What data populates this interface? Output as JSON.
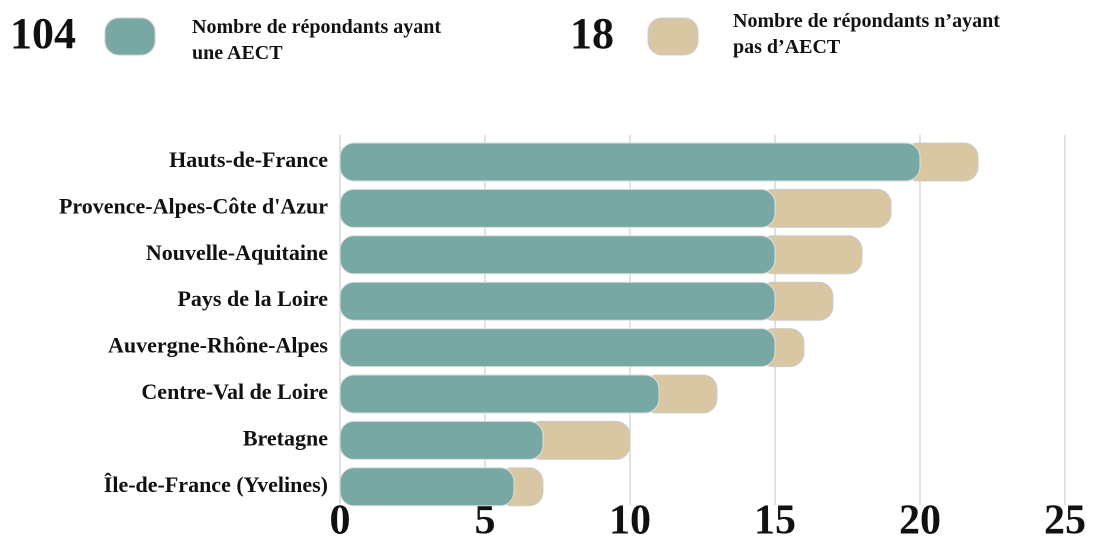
{
  "chart_data": {
    "type": "stacked-barh",
    "categories": [
      "Hauts-de-France",
      "Provence-Alpes-Côte d'Azur",
      "Nouvelle-Aquitaine",
      "Pays de la Loire",
      "Auvergne-Rhône-Alpes",
      "Centre-Val de Loire",
      "Bretagne",
      "Île-de-France (Yvelines)"
    ],
    "series": [
      {
        "name": "Nombre de répondants ayant une AECT",
        "total": 104,
        "color": "#78a8a3",
        "values": [
          20,
          15,
          15,
          15,
          15,
          11,
          7,
          6
        ]
      },
      {
        "name": "Nombre de répondants n’ayant pas d’AECT",
        "total": 18,
        "color": "#d9c7a3",
        "values": [
          2,
          4,
          3,
          2,
          1,
          2,
          3,
          1
        ]
      }
    ],
    "xlim": [
      0,
      25
    ],
    "xticks": [
      0,
      5,
      10,
      15,
      20,
      25
    ],
    "grid": true
  }
}
